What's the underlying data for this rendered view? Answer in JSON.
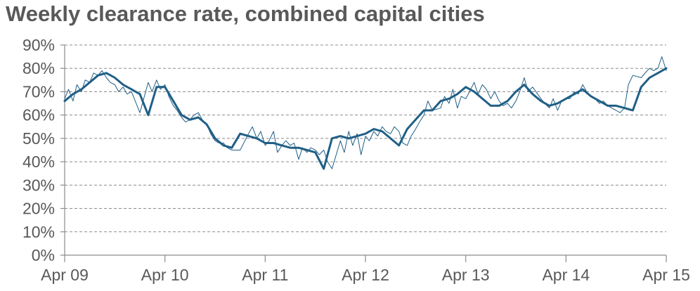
{
  "chart_data": {
    "type": "line",
    "title": "Weekly clearance rate, combined capital cities",
    "xlabel": "",
    "ylabel": "",
    "x_ticks": [
      "Apr 09",
      "Apr 10",
      "Apr 11",
      "Apr 12",
      "Apr 13",
      "Apr 14",
      "Apr 15"
    ],
    "y_ticks": [
      "0%",
      "10%",
      "20%",
      "30%",
      "40%",
      "50%",
      "60%",
      "70%",
      "80%",
      "90%"
    ],
    "ylim": [
      0,
      90
    ],
    "xlim": [
      "2009-04",
      "2015-04"
    ],
    "grid": true,
    "legend": "none",
    "colors": {
      "series": "#1f5f86",
      "grid": "#8c8c8c",
      "text": "#595959"
    },
    "series": [
      {
        "style": "thin",
        "x": [
          "2009-04",
          "2009-04-15",
          "2009-05",
          "2009-05-15",
          "2009-06",
          "2009-06-15",
          "2009-07",
          "2009-07-15",
          "2009-08",
          "2009-08-15",
          "2009-09",
          "2009-09-15",
          "2009-10",
          "2009-10-15",
          "2009-11",
          "2009-11-15",
          "2009-12",
          "2010-01",
          "2010-01-15",
          "2010-02",
          "2010-02-15",
          "2010-03",
          "2010-03-15",
          "2010-04",
          "2010-04-15",
          "2010-05",
          "2010-05-15",
          "2010-06",
          "2010-06-15",
          "2010-07",
          "2010-07-15",
          "2010-08",
          "2010-08-15",
          "2010-09",
          "2010-09-15",
          "2010-10",
          "2010-10-15",
          "2010-11",
          "2010-11-15",
          "2010-12",
          "2011-01",
          "2011-02",
          "2011-02-15",
          "2011-03",
          "2011-03-15",
          "2011-04",
          "2011-04-15",
          "2011-05",
          "2011-05-15",
          "2011-06",
          "2011-06-15",
          "2011-07",
          "2011-07-15",
          "2011-08",
          "2011-08-15",
          "2011-09",
          "2011-09-15",
          "2011-10",
          "2011-10-15",
          "2011-11",
          "2011-11-15",
          "2011-12",
          "2012-01",
          "2012-01-15",
          "2012-02",
          "2012-02-15",
          "2012-03",
          "2012-03-15",
          "2012-04",
          "2012-04-15",
          "2012-05",
          "2012-05-15",
          "2012-06",
          "2012-06-15",
          "2012-07",
          "2012-07-15",
          "2012-08",
          "2012-08-15",
          "2012-09",
          "2012-09-15",
          "2012-10",
          "2012-10-15",
          "2012-11",
          "2012-11-15",
          "2012-12",
          "2013-01",
          "2013-01-15",
          "2013-02",
          "2013-02-15",
          "2013-03",
          "2013-03-15",
          "2013-04",
          "2013-04-15",
          "2013-05",
          "2013-05-15",
          "2013-06",
          "2013-06-15",
          "2013-07",
          "2013-07-15",
          "2013-08",
          "2013-08-15",
          "2013-09",
          "2013-09-15",
          "2013-10",
          "2013-10-15",
          "2013-11",
          "2013-11-15",
          "2013-12",
          "2014-01",
          "2014-01-15",
          "2014-02",
          "2014-02-15",
          "2014-03",
          "2014-03-15",
          "2014-04",
          "2014-04-15",
          "2014-05",
          "2014-05-15",
          "2014-06",
          "2014-06-15",
          "2014-07",
          "2014-07-15",
          "2014-08",
          "2014-08-15",
          "2014-09",
          "2014-09-15",
          "2014-10",
          "2014-10-15",
          "2014-11",
          "2014-11-15",
          "2014-12",
          "2015-01",
          "2015-01-15",
          "2015-02",
          "2015-02-15",
          "2015-03",
          "2015-03-15",
          "2015-04"
        ],
        "values": [
          67,
          71,
          66,
          73,
          70,
          75,
          74,
          78,
          77,
          79,
          76,
          74,
          73,
          70,
          72,
          69,
          70,
          61,
          67,
          74,
          70,
          75,
          71,
          73,
          68,
          64,
          62,
          59,
          57,
          58,
          60,
          61,
          58,
          56,
          52,
          49,
          48,
          48,
          46,
          45,
          45,
          52,
          55,
          50,
          53,
          47,
          49,
          53,
          44,
          47,
          49,
          47,
          48,
          41,
          46,
          44,
          46,
          45,
          43,
          45,
          40,
          37,
          49,
          44,
          53,
          47,
          52,
          43,
          51,
          49,
          53,
          51,
          55,
          53,
          52,
          55,
          53,
          48,
          47,
          51,
          54,
          57,
          60,
          66,
          62,
          63,
          68,
          65,
          71,
          63,
          68,
          67,
          70,
          74,
          69,
          73,
          71,
          67,
          70,
          66,
          64,
          65,
          63,
          66,
          70,
          76,
          70,
          72,
          67,
          65,
          63,
          67,
          62,
          66,
          67,
          67,
          70,
          69,
          73,
          70,
          68,
          67,
          65,
          66,
          64,
          63,
          62,
          61,
          63,
          73,
          77,
          76,
          78,
          80,
          79,
          80,
          85,
          79
        ]
      },
      {
        "style": "thick",
        "x": [
          "2009-04",
          "2009-05",
          "2009-06",
          "2009-07",
          "2009-08",
          "2009-09",
          "2009-10",
          "2009-11",
          "2009-12",
          "2010-01",
          "2010-02",
          "2010-03",
          "2010-04",
          "2010-05",
          "2010-06",
          "2010-07",
          "2010-08",
          "2010-09",
          "2010-10",
          "2010-11",
          "2010-12",
          "2011-01",
          "2011-02",
          "2011-03",
          "2011-04",
          "2011-05",
          "2011-06",
          "2011-07",
          "2011-08",
          "2011-09",
          "2011-10",
          "2011-11",
          "2011-12",
          "2012-01",
          "2012-02",
          "2012-03",
          "2012-04",
          "2012-05",
          "2012-06",
          "2012-07",
          "2012-08",
          "2012-09",
          "2012-10",
          "2012-11",
          "2012-12",
          "2013-01",
          "2013-02",
          "2013-03",
          "2013-04",
          "2013-05",
          "2013-06",
          "2013-07",
          "2013-08",
          "2013-09",
          "2013-10",
          "2013-11",
          "2013-12",
          "2014-01",
          "2014-02",
          "2014-03",
          "2014-04",
          "2014-05",
          "2014-06",
          "2014-07",
          "2014-08",
          "2014-09",
          "2014-10",
          "2014-11",
          "2014-12",
          "2015-01",
          "2015-02",
          "2015-03",
          "2015-04"
        ],
        "values": [
          66,
          69,
          71,
          74,
          77,
          78,
          76,
          73,
          71,
          69,
          60,
          72,
          72,
          66,
          60,
          58,
          59,
          56,
          50,
          47,
          46,
          52,
          51,
          50,
          48,
          48,
          47,
          46,
          46,
          45,
          44,
          37,
          50,
          51,
          50,
          51,
          52,
          54,
          53,
          50,
          47,
          54,
          58,
          62,
          62,
          66,
          67,
          69,
          72,
          70,
          67,
          64,
          64,
          66,
          70,
          73,
          69,
          66,
          64,
          65,
          67,
          69,
          71,
          68,
          66,
          64,
          64,
          63,
          62,
          72,
          76,
          78,
          80
        ]
      }
    ]
  }
}
